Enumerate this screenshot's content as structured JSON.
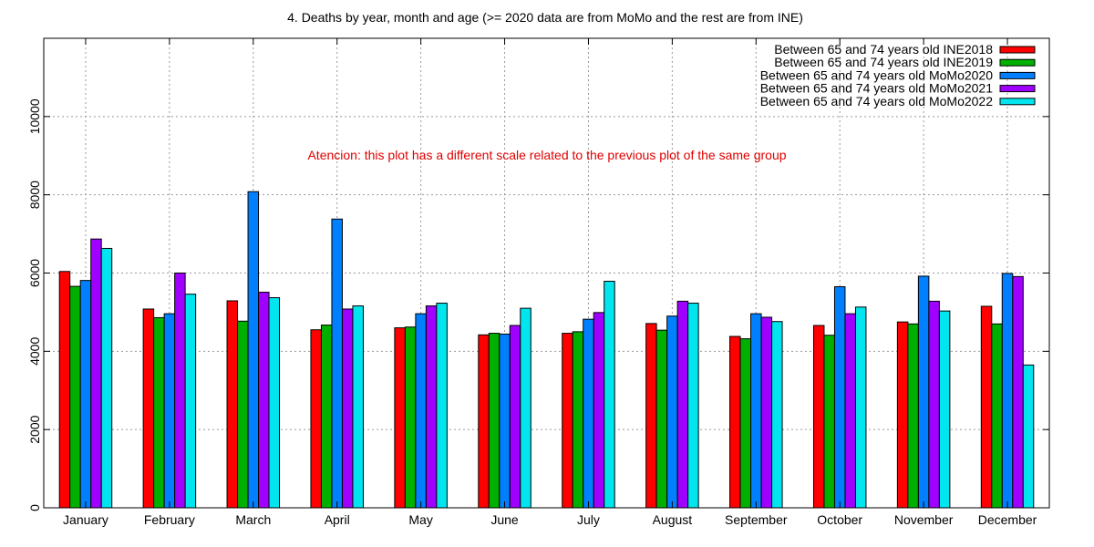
{
  "chart_data": {
    "type": "bar",
    "title": "4. Deaths by year, month and age (>= 2020 data are from MoMo and the rest are from INE)",
    "annotation": "Atencion: this plot has a different scale related to the previous plot of the same group",
    "xlabel": "",
    "ylabel": "",
    "ylim": [
      0,
      12000
    ],
    "yticks": [
      0,
      2000,
      4000,
      6000,
      8000,
      10000
    ],
    "grid": true,
    "legend_position": "top-right",
    "categories": [
      "January",
      "February",
      "March",
      "April",
      "May",
      "June",
      "July",
      "August",
      "September",
      "October",
      "November",
      "December"
    ],
    "series": [
      {
        "name": "Between 65 and 74 years old INE2018",
        "color": "#ff0000",
        "values": [
          6040,
          5080,
          5290,
          4550,
          4600,
          4420,
          4460,
          4710,
          4380,
          4660,
          4750,
          5150
        ]
      },
      {
        "name": "Between 65 and 74 years old INE2019",
        "color": "#00b000",
        "values": [
          5660,
          4860,
          4770,
          4670,
          4620,
          4460,
          4500,
          4540,
          4320,
          4410,
          4700,
          4700
        ]
      },
      {
        "name": "Between 65 and 74 years old MoMo2020",
        "color": "#0080ff",
        "values": [
          5810,
          4960,
          8080,
          7380,
          4960,
          4440,
          4820,
          4900,
          4960,
          5650,
          5920,
          5990
        ]
      },
      {
        "name": "Between 65 and 74 years old MoMo2021",
        "color": "#a000ff",
        "values": [
          6870,
          6000,
          5510,
          5080,
          5160,
          4660,
          4990,
          5280,
          4870,
          4960,
          5280,
          5910
        ]
      },
      {
        "name": "Between 65 and 74 years old MoMo2022",
        "color": "#00e5ee",
        "values": [
          6630,
          5460,
          5370,
          5160,
          5230,
          5100,
          5790,
          5230,
          4760,
          5130,
          5030,
          3650
        ]
      }
    ]
  }
}
